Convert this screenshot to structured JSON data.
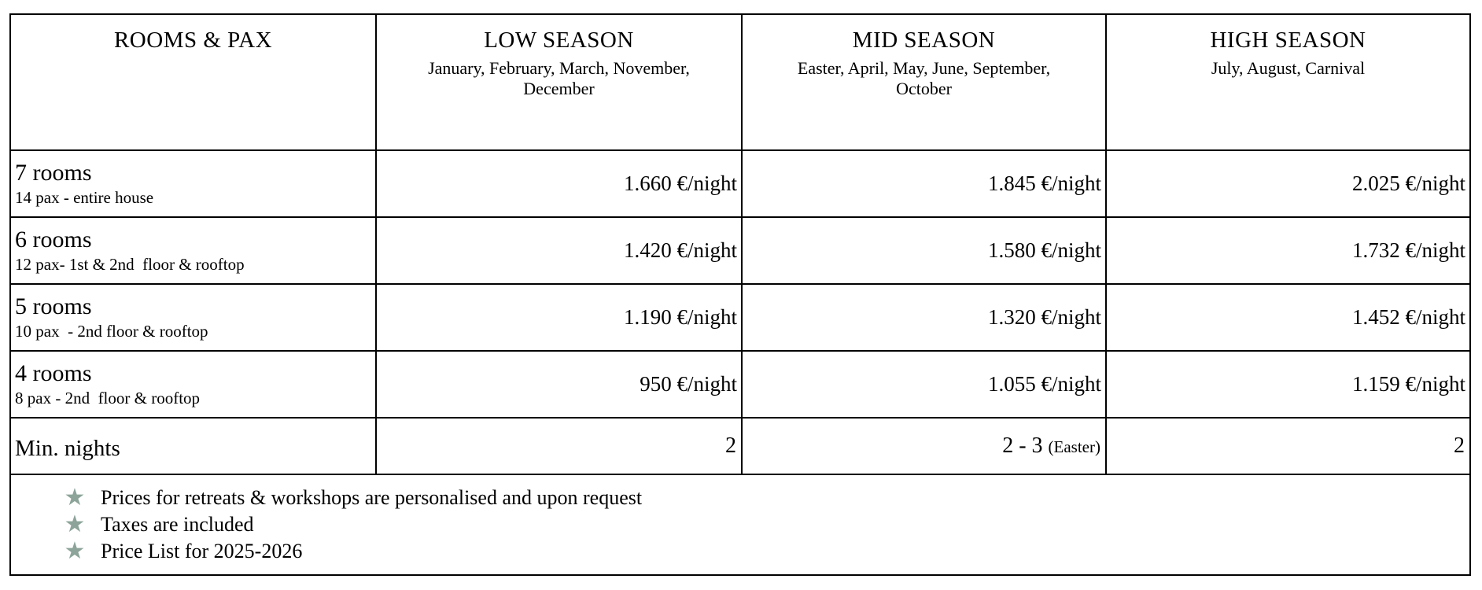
{
  "meta": {
    "background": "#ffffff",
    "border_color": "#000000",
    "star_color": "#8CA499"
  },
  "table": {
    "header": {
      "rooms_pax": "ROOMS & PAX",
      "seasons": [
        {
          "title": "LOW SEASON",
          "subtitle": "January, February, March, November, December"
        },
        {
          "title": "MID SEASON",
          "subtitle": "Easter, April, May, June, September, October"
        },
        {
          "title": "HIGH SEASON",
          "subtitle": "July, August, Carnival"
        }
      ]
    },
    "rows": [
      {
        "name": "7 rooms",
        "detail": "14 pax - entire house",
        "low": "1.660 €/night",
        "mid": "1.845 €/night",
        "high": "2.025 €/night"
      },
      {
        "name": "6 rooms",
        "detail": "12 pax- 1st & 2nd  floor & rooftop",
        "low": "1.420 €/night",
        "mid": "1.580 €/night",
        "high": "1.732 €/night"
      },
      {
        "name": "5 rooms",
        "detail": "10 pax  - 2nd floor & rooftop",
        "low": "1.190 €/night",
        "mid": "1.320 €/night",
        "high": "1.452 €/night"
      },
      {
        "name": "4 rooms",
        "detail": "8 pax - 2nd  floor & rooftop",
        "low": "950 €/night",
        "mid": "1.055 €/night",
        "high": "1.159 €/night"
      }
    ],
    "min_nights": {
      "label": "Min. nights",
      "low": "2",
      "mid_main": "2 - 3",
      "mid_note": "(Easter)",
      "high": "2"
    },
    "notes": {
      "star_icon": "★",
      "items": [
        "Prices for retreats & workshops are personalised and upon request",
        "Taxes are included",
        "Price List for 2025-2026"
      ]
    }
  }
}
